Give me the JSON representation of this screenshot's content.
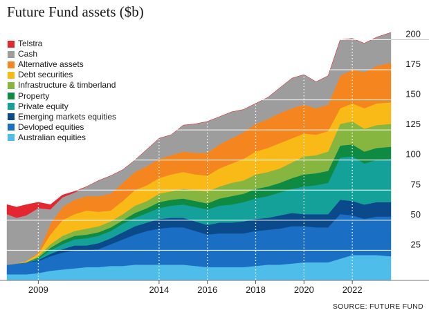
{
  "title": "Future Fund assets ($b)",
  "source": "SOURCE: FUTURE FUND",
  "chart_data": {
    "type": "area",
    "stacked": true,
    "title": "Future Fund assets ($b)",
    "xlabel": "",
    "ylabel": "",
    "ylim": [
      0,
      210
    ],
    "xlim": [
      2007.7,
      2023.6
    ],
    "yticks": [
      25,
      50,
      75,
      100,
      125,
      150,
      175,
      200
    ],
    "xticks": [
      {
        "value": 2009,
        "label": "2009"
      },
      {
        "value": 2014,
        "label": "2014"
      },
      {
        "value": 2016,
        "label": "2016"
      },
      {
        "value": 2018,
        "label": "2018"
      },
      {
        "value": 2020,
        "label": "2020"
      },
      {
        "value": 2022,
        "label": "2022"
      }
    ],
    "grid": "horizontal lines with dotted vertical lines at labelled years",
    "legend_position": "top-left",
    "x": [
      2007.7,
      2008.1,
      2008.5,
      2009.0,
      2009.5,
      2010.0,
      2010.5,
      2011.0,
      2011.5,
      2012.0,
      2012.5,
      2013.0,
      2013.5,
      2014.0,
      2014.5,
      2015.0,
      2015.5,
      2016.0,
      2016.5,
      2017.0,
      2017.5,
      2018.0,
      2018.5,
      2019.0,
      2019.5,
      2020.0,
      2020.5,
      2021.0,
      2021.5,
      2022.0,
      2022.5,
      2023.0,
      2023.6
    ],
    "series": [
      {
        "name": "Australian equities",
        "color": "#4fbde9",
        "values": [
          5,
          5,
          5,
          6,
          8,
          9,
          10,
          11,
          11,
          12,
          12,
          13,
          13,
          13,
          13,
          13,
          12,
          11,
          11,
          11,
          11,
          12,
          13,
          13,
          14,
          15,
          15,
          15,
          18,
          21,
          21,
          21,
          20
        ]
      },
      {
        "name": "Devloped equities",
        "color": "#1a6fc4",
        "values": [
          8,
          9,
          10,
          10,
          12,
          14,
          15,
          14,
          15,
          18,
          22,
          25,
          28,
          30,
          31,
          31,
          29,
          27,
          28,
          28,
          28,
          29,
          29,
          30,
          31,
          30,
          29,
          29,
          37,
          33,
          30,
          32,
          33
        ]
      },
      {
        "name": "Emerging markets equities",
        "color": "#0b4a8a",
        "values": [
          0,
          0,
          0,
          1,
          2,
          3,
          4,
          4,
          5,
          5,
          6,
          7,
          7,
          8,
          8,
          8,
          8,
          8,
          9,
          9,
          10,
          10,
          10,
          11,
          11,
          10,
          11,
          11,
          12,
          12,
          12,
          12,
          12
        ]
      },
      {
        "name": "Private equity",
        "color": "#14a19a",
        "values": [
          0,
          0,
          0,
          1,
          3,
          4,
          5,
          6,
          6,
          6,
          7,
          7,
          8,
          9,
          10,
          11,
          12,
          13,
          14,
          15,
          16,
          17,
          18,
          19,
          20,
          23,
          24,
          26,
          35,
          37,
          34,
          35,
          36
        ]
      },
      {
        "name": "Property",
        "color": "#0f8a43",
        "values": [
          0,
          0,
          0,
          1,
          2,
          3,
          3,
          3,
          3,
          3,
          3,
          4,
          4,
          5,
          5,
          5,
          5,
          5,
          6,
          7,
          7,
          8,
          8,
          8,
          9,
          10,
          10,
          10,
          10,
          10,
          10,
          10,
          10
        ]
      },
      {
        "name": "Infrastructure & timberland",
        "color": "#86b540",
        "values": [
          0,
          0,
          0,
          1,
          3,
          4,
          4,
          5,
          5,
          5,
          5,
          6,
          6,
          7,
          7,
          8,
          9,
          10,
          10,
          11,
          11,
          12,
          12,
          12,
          13,
          15,
          15,
          16,
          18,
          19,
          19,
          19,
          19
        ]
      },
      {
        "name": "Debt securities",
        "color": "#f9b917",
        "values": [
          0,
          0,
          1,
          2,
          8,
          13,
          14,
          15,
          12,
          9,
          11,
          13,
          13,
          13,
          14,
          14,
          13,
          13,
          15,
          16,
          18,
          19,
          20,
          21,
          20,
          19,
          17,
          17,
          13,
          15,
          17,
          18,
          18
        ]
      },
      {
        "name": "Alternative assets",
        "color": "#f5851f",
        "values": [
          0,
          0,
          0,
          1,
          9,
          11,
          12,
          12,
          13,
          14,
          15,
          15,
          16,
          16,
          16,
          17,
          18,
          19,
          20,
          21,
          22,
          23,
          24,
          25,
          25,
          24,
          22,
          22,
          27,
          28,
          30,
          31,
          33
        ]
      },
      {
        "name": "Cash",
        "color": "#9d9d9d",
        "values": [
          42,
          38,
          38,
          37,
          12,
          8,
          6,
          8,
          13,
          15,
          11,
          10,
          14,
          17,
          17,
          22,
          24,
          26,
          23,
          22,
          19,
          17,
          18,
          21,
          25,
          25,
          22,
          24,
          30,
          26,
          24,
          24,
          25
        ]
      },
      {
        "name": "Telstra",
        "color": "#e3262f",
        "values": [
          8,
          9,
          9,
          5,
          4,
          2,
          1,
          0,
          0,
          0,
          0,
          0,
          0,
          0,
          0,
          0,
          0,
          0,
          0,
          0,
          0,
          0,
          0,
          0,
          0,
          0,
          0,
          0,
          0,
          0,
          0,
          0,
          0
        ]
      }
    ]
  }
}
